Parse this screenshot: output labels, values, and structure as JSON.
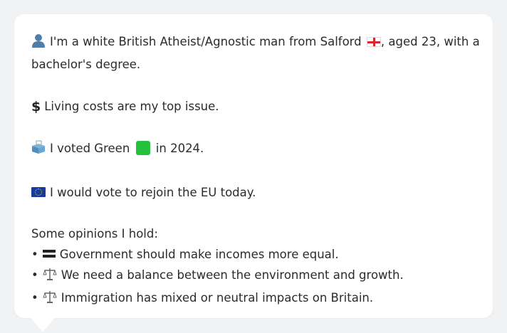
{
  "profile": {
    "identity_prefix": "I'm a white British Atheist/Agnostic man from Salford",
    "identity_suffix": ", aged 23, with a",
    "identity_line2": "bachelor's degree.",
    "flag_icon": "england-flag-icon",
    "person_icon": "person-silhouette-icon"
  },
  "issue": {
    "icon": "dollar-sign-icon",
    "text": "Living costs are my top issue."
  },
  "vote": {
    "icon": "ballot-box-icon",
    "text_before": "I voted Green",
    "text_after": "in 2024.",
    "party_color": "#26c13d"
  },
  "eu": {
    "icon": "eu-flag-icon",
    "text": "I would vote to rejoin the EU today."
  },
  "opinions": {
    "heading": "Some opinions I hold:",
    "items": [
      {
        "icon": "equals-icon",
        "text": "Government should make incomes more equal."
      },
      {
        "icon": "balance-scale-icon",
        "text": "We need a balance between the environment and growth."
      },
      {
        "icon": "balance-scale-icon",
        "text": "Immigration has mixed or neutral impacts on Britain."
      }
    ]
  },
  "colors": {
    "background": "#f1f2f4",
    "card": "#ffffff",
    "text": "#2b2b2b"
  }
}
